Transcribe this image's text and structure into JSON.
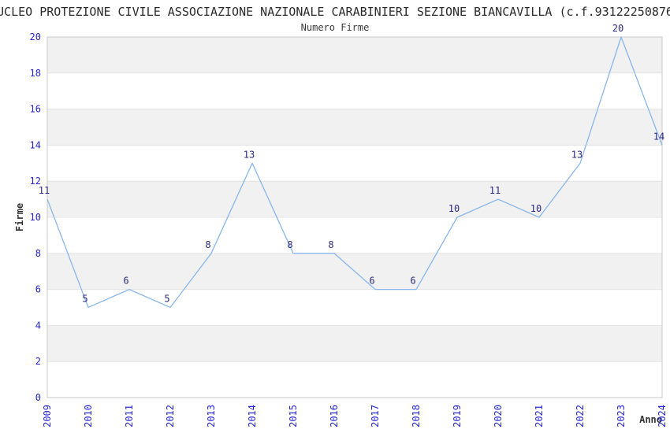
{
  "chart_data": {
    "type": "line",
    "title": "UCLEO PROTEZIONE CIVILE ASSOCIAZIONE NAZIONALE CARABINIERI SEZIONE BIANCAVILLA (c.f.93122250876",
    "subtitle": "Numero Firme",
    "xlabel": "Anno",
    "ylabel": "Firme",
    "categories": [
      "2009",
      "2010",
      "2011",
      "2012",
      "2013",
      "2014",
      "2015",
      "2016",
      "2017",
      "2018",
      "2019",
      "2020",
      "2021",
      "2022",
      "2023",
      "2024"
    ],
    "values": [
      11,
      5,
      6,
      5,
      8,
      13,
      8,
      8,
      6,
      6,
      10,
      11,
      10,
      13,
      20,
      14
    ],
    "ylim": [
      0,
      20
    ],
    "ytick_step": 2,
    "grid": "horizontal-bands-alternating",
    "legend_position": "none",
    "colors": {
      "line": "#89b6e9",
      "axis_tick_label": "#2525cf",
      "data_label": "#2a2a80",
      "band_fill": "#f1f1f1",
      "band_alt_fill": "#ffffff",
      "gridline": "#e3e3e3",
      "plot_border": "#c9c9c9",
      "title_text": "#2b2b2b"
    }
  }
}
